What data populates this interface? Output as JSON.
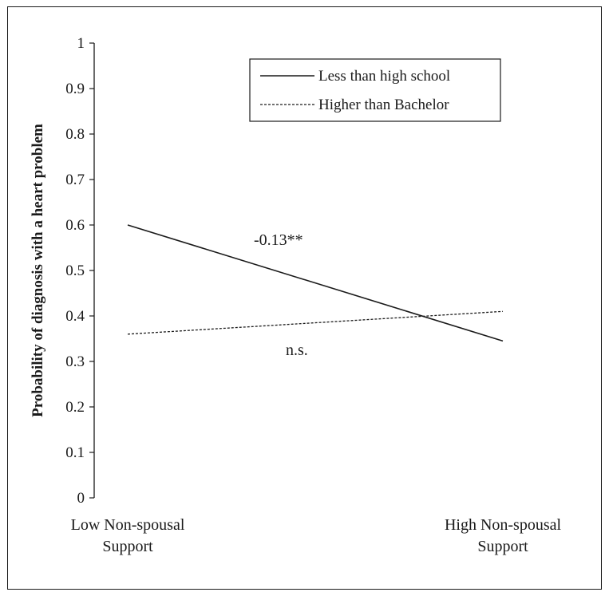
{
  "chart_data": {
    "type": "line",
    "categories": [
      "Low Non-spousal Support",
      "High Non-spousal Support"
    ],
    "category_lines": [
      [
        "Low Non-spousal",
        "Support"
      ],
      [
        "High Non-spousal",
        "Support"
      ]
    ],
    "ylabel": "Probability of diagnosis with a heart problem",
    "ylim": [
      0,
      1
    ],
    "yticks": [
      0,
      0.1,
      0.2,
      0.3,
      0.4,
      0.5,
      0.6,
      0.7,
      0.8,
      0.9,
      1
    ],
    "ytick_labels": [
      "0",
      "0.1",
      "0.2",
      "0.3",
      "0.4",
      "0.5",
      "0.6",
      "0.7",
      "0.8",
      "0.9",
      "1"
    ],
    "grid": false,
    "legend_position": "top-right",
    "series": [
      {
        "name": "Less than high school",
        "values": [
          0.6,
          0.345
        ],
        "style": "solid",
        "annotation": "-0.13**"
      },
      {
        "name": "Higher than Bachelor",
        "values": [
          0.36,
          0.41
        ],
        "style": "dashed",
        "annotation": "n.s."
      }
    ],
    "colors": {
      "line": "#1a1a1a"
    }
  }
}
